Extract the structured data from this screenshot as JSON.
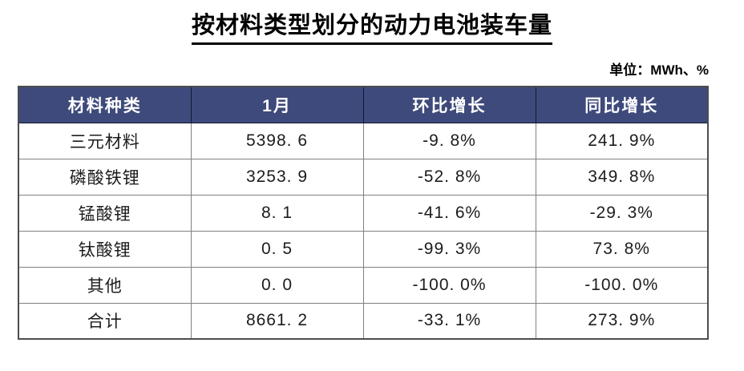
{
  "title": "按材料类型划分的动力电池装车量",
  "unit_label": "单位：MWh、%",
  "table": {
    "headers": [
      "材料种类",
      "1月",
      "环比增长",
      "同比增长"
    ],
    "rows": [
      [
        "三元材料",
        "5398. 6",
        "-9. 8%",
        "241. 9%"
      ],
      [
        "磷酸铁锂",
        "3253. 9",
        "-52. 8%",
        "349. 8%"
      ],
      [
        "锰酸锂",
        "8. 1",
        "-41. 6%",
        "-29. 3%"
      ],
      [
        "钛酸锂",
        "0. 5",
        "-99. 3%",
        "73. 8%"
      ],
      [
        "其他",
        "0. 0",
        "-100. 0%",
        "-100. 0%"
      ],
      [
        "合计",
        "8661. 2",
        "-33. 1%",
        "273. 9%"
      ]
    ]
  },
  "chart_data": {
    "type": "table",
    "title": "按材料类型划分的动力电池装车量",
    "unit": "MWh、%",
    "columns": [
      "材料种类",
      "1月",
      "环比增长",
      "同比增长"
    ],
    "categories": [
      "三元材料",
      "磷酸铁锂",
      "锰酸锂",
      "钛酸锂",
      "其他",
      "合计"
    ],
    "series": [
      {
        "name": "1月",
        "values": [
          5398.6,
          3253.9,
          8.1,
          0.5,
          0.0,
          8661.2
        ]
      },
      {
        "name": "环比增长",
        "values": [
          -9.8,
          -52.8,
          -41.6,
          -99.3,
          -100.0,
          -33.1
        ]
      },
      {
        "name": "同比增长",
        "values": [
          241.9,
          349.8,
          -29.3,
          73.8,
          -100.0,
          273.9
        ]
      }
    ]
  },
  "colors": {
    "header_bg": "#3E4A7B",
    "header_text": "#FFFFFF",
    "grid_line": "#808080",
    "outer_border": "#4D4D4D",
    "body_text": "#1C1C1C",
    "page_bg": "#FFFFFF"
  }
}
